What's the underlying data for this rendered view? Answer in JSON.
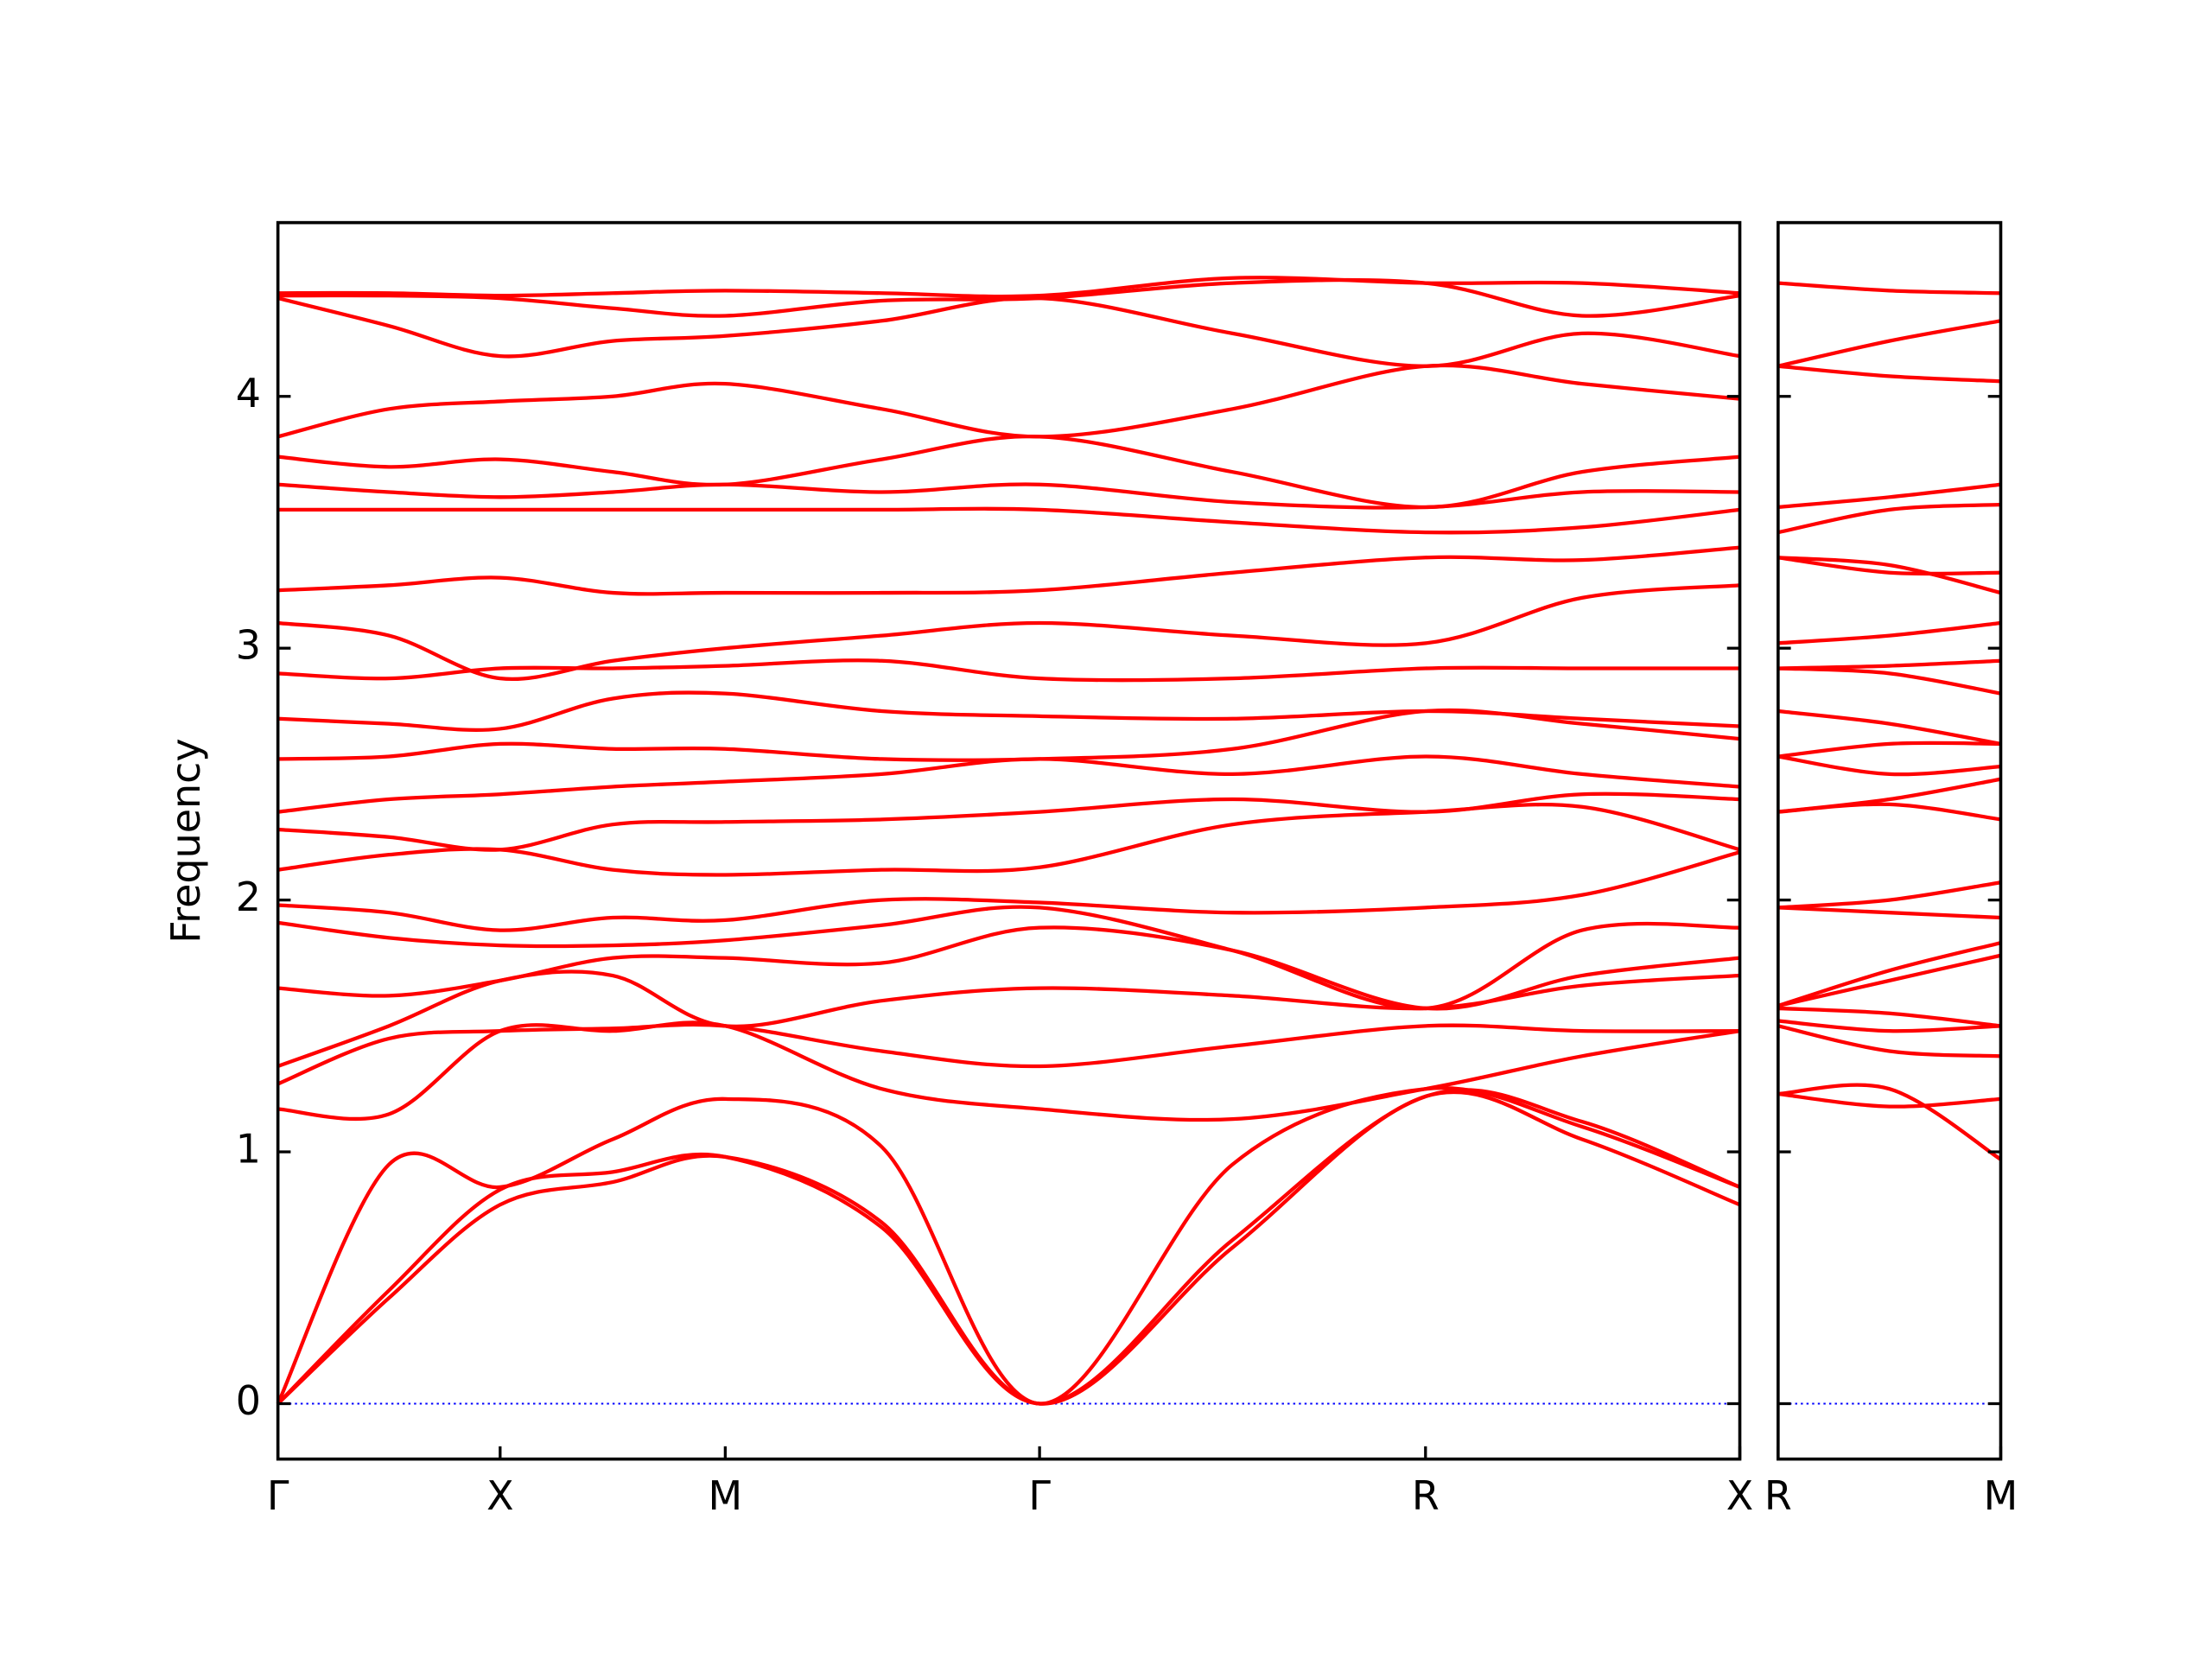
{
  "chart_data": [
    {
      "type": "line",
      "ylabel": "Frequency",
      "ytick_labels": true,
      "color": "#ff0000",
      "zero_line_color": "#0000ff",
      "xlim": [
        0,
        1
      ],
      "ylim": [
        -0.22,
        4.69
      ],
      "xticks": [
        {
          "value": 0,
          "label": "Γ"
        },
        {
          "value": 0.152,
          "label": "X"
        },
        {
          "value": 0.306,
          "label": "M"
        },
        {
          "value": 0.521,
          "label": "Γ"
        },
        {
          "value": 0.785,
          "label": "R"
        },
        {
          "value": 1,
          "label": "X"
        }
      ],
      "yticks": [
        0,
        1,
        2,
        3,
        4
      ],
      "x": [
        0,
        0.076,
        0.152,
        0.229,
        0.306,
        0.413,
        0.521,
        0.653,
        0.785,
        0.892,
        1
      ],
      "series": [
        {
          "values": [
            0,
            0.42,
            0.79,
            0.88,
            0.98,
            0.72,
            0,
            0.62,
            1.22,
            1.05,
            0.79
          ]
        },
        {
          "values": [
            0,
            0.45,
            0.85,
            0.92,
            0.98,
            0.7,
            0,
            0.65,
            1.22,
            1.12,
            0.86
          ]
        },
        {
          "values": [
            0,
            0.95,
            0.86,
            1.05,
            1.21,
            1.02,
            0,
            0.95,
            1.25,
            1.1,
            0.86
          ]
        },
        {
          "values": [
            1.17,
            1.15,
            1.48,
            1.48,
            1.5,
            1.25,
            1.17,
            1.13,
            1.25,
            1.38,
            1.48
          ]
        },
        {
          "values": [
            1.27,
            1.45,
            1.48,
            1.49,
            1.5,
            1.4,
            1.34,
            1.42,
            1.5,
            1.48,
            1.48
          ]
        },
        {
          "values": [
            1.34,
            1.5,
            1.68,
            1.7,
            1.5,
            1.6,
            1.65,
            1.62,
            1.57,
            1.66,
            1.7
          ]
        },
        {
          "values": [
            1.65,
            1.62,
            1.68,
            1.77,
            1.77,
            1.75,
            1.89,
            1.8,
            1.57,
            1.7,
            1.77
          ]
        },
        {
          "values": [
            1.91,
            1.85,
            1.82,
            1.82,
            1.84,
            1.9,
            1.97,
            1.8,
            1.57,
            1.88,
            1.89
          ]
        },
        {
          "values": [
            1.98,
            1.95,
            1.88,
            1.93,
            1.92,
            2.0,
            1.99,
            1.95,
            1.97,
            2.02,
            2.19
          ]
        },
        {
          "values": [
            2.12,
            2.18,
            2.2,
            2.12,
            2.1,
            2.12,
            2.13,
            2.3,
            2.35,
            2.37,
            2.2
          ]
        },
        {
          "values": [
            2.28,
            2.25,
            2.2,
            2.3,
            2.31,
            2.32,
            2.35,
            2.4,
            2.35,
            2.42,
            2.4
          ]
        },
        {
          "values": [
            2.35,
            2.4,
            2.42,
            2.45,
            2.47,
            2.5,
            2.56,
            2.5,
            2.57,
            2.5,
            2.45
          ]
        },
        {
          "values": [
            2.56,
            2.57,
            2.62,
            2.6,
            2.6,
            2.56,
            2.56,
            2.6,
            2.75,
            2.7,
            2.64
          ]
        },
        {
          "values": [
            2.72,
            2.7,
            2.68,
            2.8,
            2.82,
            2.75,
            2.73,
            2.72,
            2.75,
            2.72,
            2.69
          ]
        },
        {
          "values": [
            2.9,
            2.88,
            2.92,
            2.92,
            2.93,
            2.95,
            2.88,
            2.88,
            2.92,
            2.92,
            2.92
          ]
        },
        {
          "values": [
            3.1,
            3.05,
            2.88,
            2.95,
            3.0,
            3.05,
            3.1,
            3.05,
            3.02,
            3.2,
            3.25
          ]
        },
        {
          "values": [
            3.23,
            3.25,
            3.28,
            3.22,
            3.22,
            3.22,
            3.23,
            3.3,
            3.36,
            3.35,
            3.4
          ]
        },
        {
          "values": [
            3.55,
            3.55,
            3.55,
            3.55,
            3.55,
            3.55,
            3.55,
            3.5,
            3.46,
            3.48,
            3.55
          ]
        },
        {
          "values": [
            3.65,
            3.62,
            3.6,
            3.62,
            3.65,
            3.62,
            3.65,
            3.58,
            3.56,
            3.62,
            3.62
          ]
        },
        {
          "values": [
            3.76,
            3.72,
            3.75,
            3.7,
            3.65,
            3.75,
            3.84,
            3.7,
            3.56,
            3.7,
            3.76
          ]
        },
        {
          "values": [
            3.84,
            3.95,
            3.98,
            4.0,
            4.05,
            3.95,
            3.84,
            3.95,
            4.12,
            4.05,
            3.99
          ]
        },
        {
          "values": [
            4.39,
            4.28,
            4.16,
            4.22,
            4.24,
            4.3,
            4.39,
            4.25,
            4.12,
            4.25,
            4.16
          ]
        },
        {
          "values": [
            4.4,
            4.4,
            4.39,
            4.35,
            4.32,
            4.38,
            4.39,
            4.45,
            4.45,
            4.32,
            4.4
          ]
        },
        {
          "values": [
            4.41,
            4.41,
            4.4,
            4.41,
            4.42,
            4.41,
            4.4,
            4.47,
            4.45,
            4.45,
            4.41
          ]
        }
      ]
    },
    {
      "type": "line",
      "ytick_labels": false,
      "color": "#ff0000",
      "zero_line_color": "#0000ff",
      "xlim": [
        0,
        1
      ],
      "ylim": [
        -0.22,
        4.69
      ],
      "xticks": [
        {
          "value": 0,
          "label": "R"
        },
        {
          "value": 1,
          "label": "M"
        }
      ],
      "yticks": [
        0,
        1,
        2,
        3,
        4
      ],
      "x": [
        0,
        0.5,
        1
      ],
      "series": [
        {
          "values": [
            1.23,
            1.25,
            0.97
          ]
        },
        {
          "values": [
            1.23,
            1.18,
            1.21
          ]
        },
        {
          "values": [
            1.5,
            1.4,
            1.38
          ]
        },
        {
          "values": [
            1.52,
            1.48,
            1.5
          ]
        },
        {
          "values": [
            1.57,
            1.55,
            1.5
          ]
        },
        {
          "values": [
            1.58,
            1.68,
            1.78
          ]
        },
        {
          "values": [
            1.58,
            1.72,
            1.83
          ]
        },
        {
          "values": [
            1.97,
            2.0,
            2.07
          ]
        },
        {
          "values": [
            1.97,
            1.95,
            1.93
          ]
        },
        {
          "values": [
            2.35,
            2.38,
            2.32
          ]
        },
        {
          "values": [
            2.35,
            2.4,
            2.48
          ]
        },
        {
          "values": [
            2.57,
            2.5,
            2.53
          ]
        },
        {
          "values": [
            2.57,
            2.62,
            2.62
          ]
        },
        {
          "values": [
            2.75,
            2.7,
            2.62
          ]
        },
        {
          "values": [
            2.92,
            2.9,
            2.82
          ]
        },
        {
          "values": [
            2.92,
            2.93,
            2.95
          ]
        },
        {
          "values": [
            3.02,
            3.05,
            3.1
          ]
        },
        {
          "values": [
            3.36,
            3.33,
            3.22
          ]
        },
        {
          "values": [
            3.36,
            3.3,
            3.3
          ]
        },
        {
          "values": [
            3.46,
            3.55,
            3.57
          ]
        },
        {
          "values": [
            3.56,
            3.6,
            3.65
          ]
        },
        {
          "values": [
            4.12,
            4.08,
            4.06
          ]
        },
        {
          "values": [
            4.12,
            4.22,
            4.3
          ]
        },
        {
          "values": [
            4.45,
            4.42,
            4.41
          ]
        }
      ]
    }
  ]
}
